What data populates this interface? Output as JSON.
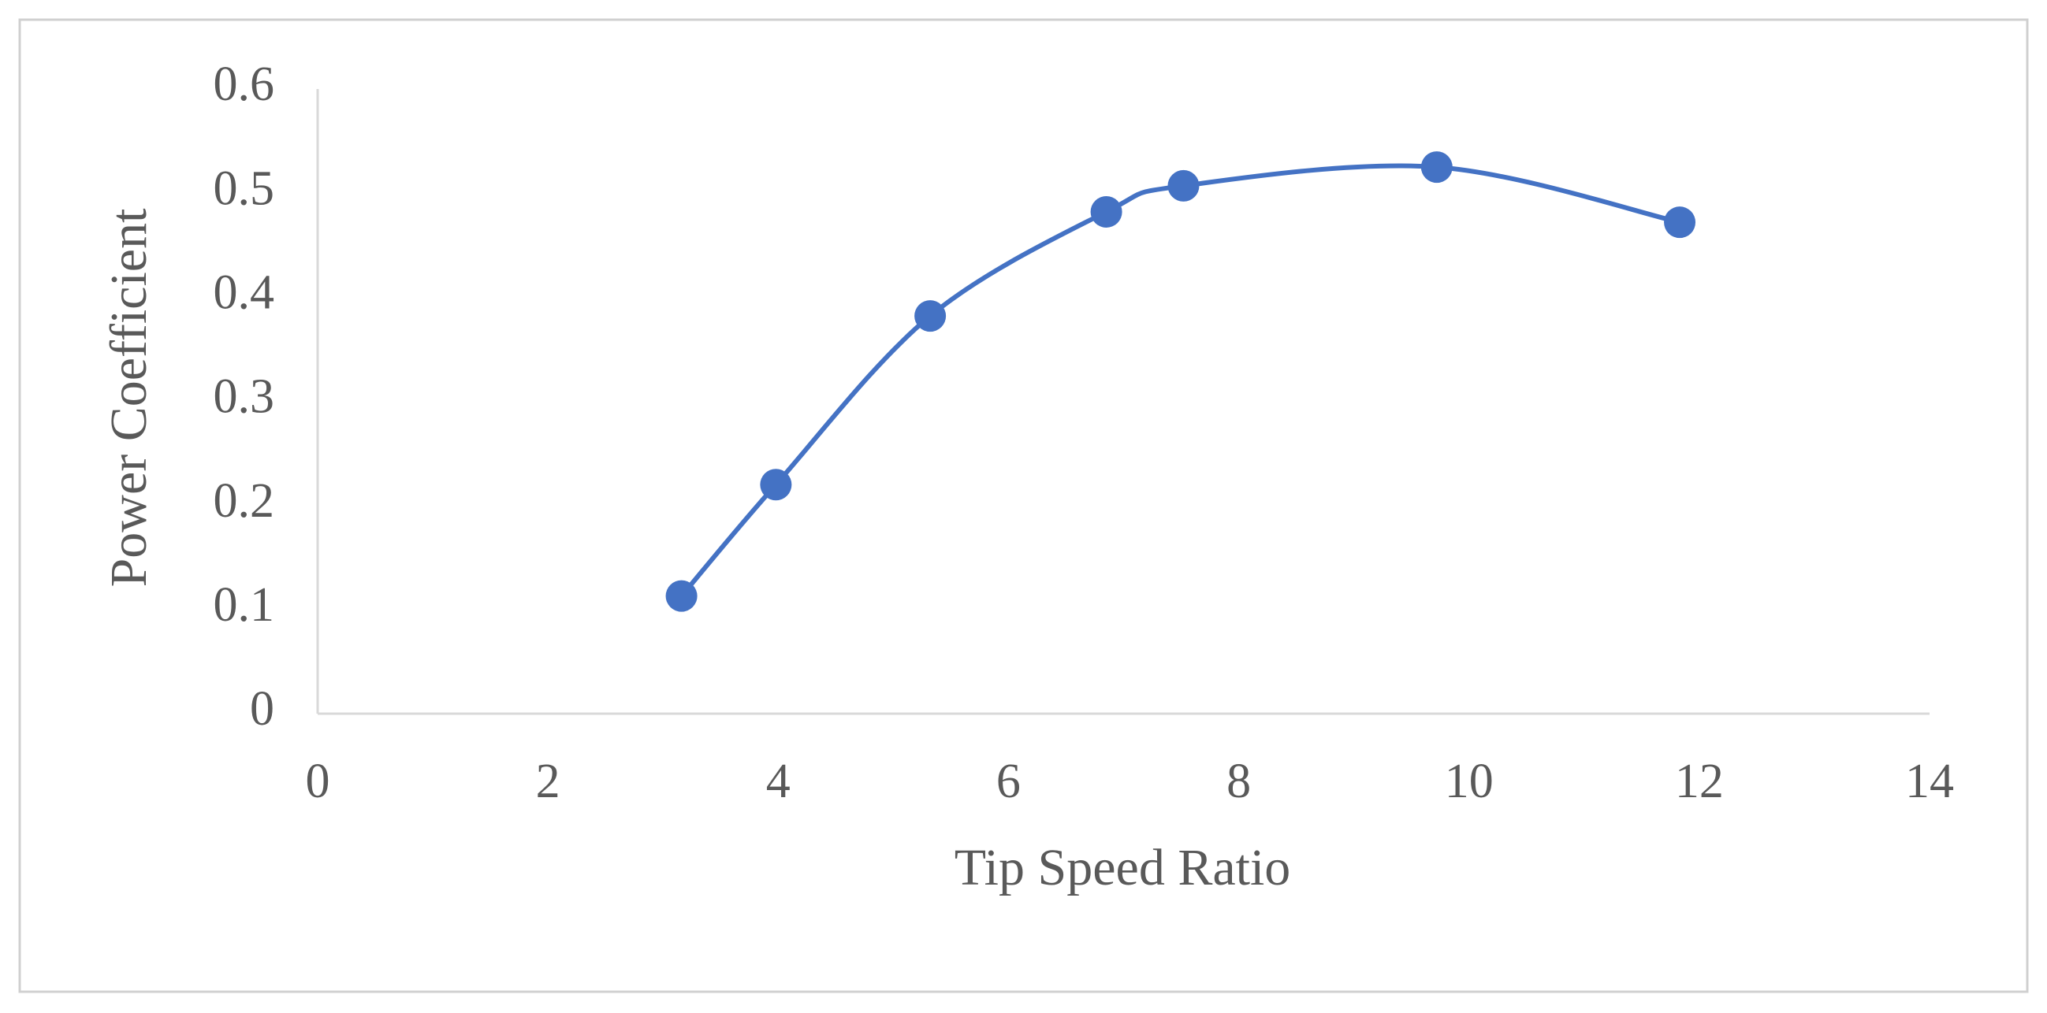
{
  "chart_data": {
    "type": "line",
    "x_label": "Tip Speed Ratio",
    "y_label": "Power Coefficient",
    "series": [
      {
        "color": "#4472c4",
        "x": [
          3.16,
          3.98,
          5.32,
          6.85,
          7.52,
          9.72,
          11.83
        ],
        "values": [
          0.113,
          0.22,
          0.382,
          0.482,
          0.507,
          0.525,
          0.472
        ]
      }
    ],
    "xlim": [
      0,
      14
    ],
    "xticks": [
      0,
      2,
      4,
      6,
      8,
      10,
      12,
      14
    ],
    "ylim": [
      0,
      0.6
    ],
    "yticks": [
      0,
      0.1,
      0.2,
      0.3,
      0.4,
      0.5,
      0.6
    ],
    "markers": true,
    "smooth": true,
    "grid": false
  }
}
